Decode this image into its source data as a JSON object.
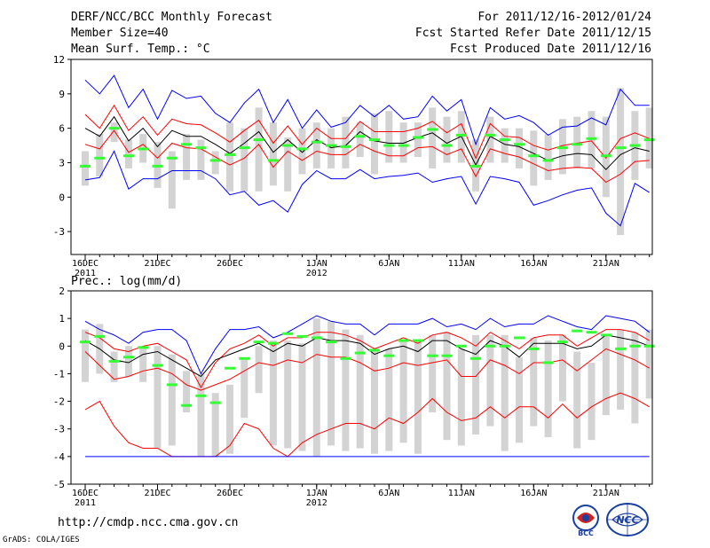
{
  "header": {
    "title": "DERF/NCC/BCC Monthly Forecast",
    "member_size": "Member Size=40",
    "variable": "Mean Surf. Temp.: °C",
    "period": "For 2011/12/16-2012/01/24",
    "started": "Fcst Started Refer Date 2011/12/15",
    "produced": "Fcst Produced Date 2011/12/16"
  },
  "footer": {
    "url": "http://cmdp.ncc.cma.gov.cn",
    "credit": "GrADS: COLA/IGES",
    "logo_left": "BCC",
    "logo_right": "NCC"
  },
  "colors": {
    "envelope": "#0000ff",
    "spread": "#ff0000",
    "mean": "#000000",
    "box": "#d3d3d3",
    "marker": "#33ff33"
  },
  "chart_data": [
    {
      "type": "line",
      "name": "temperature",
      "title": "",
      "ylabel": "Mean Surf. Temp.: °C",
      "ylim": [
        -5,
        12
      ],
      "yticks": [
        "12",
        "9",
        "6",
        "3",
        "0",
        "-3"
      ],
      "ytick_values": [
        12,
        9,
        6,
        3,
        0,
        -3
      ],
      "x_tick_labels": [
        {
          "day": 0,
          "label": "16DEC",
          "sub": "2011"
        },
        {
          "day": 5,
          "label": "21DEC",
          "sub": ""
        },
        {
          "day": 10,
          "label": "26DEC",
          "sub": ""
        },
        {
          "day": 16,
          "label": "1JAN",
          "sub": "2012"
        },
        {
          "day": 21,
          "label": "6JAN",
          "sub": ""
        },
        {
          "day": 26,
          "label": "11JAN",
          "sub": ""
        },
        {
          "day": 31,
          "label": "16JAN",
          "sub": ""
        },
        {
          "day": 36,
          "label": "21JAN",
          "sub": ""
        }
      ],
      "series": [
        {
          "name": "max",
          "color": "#0000ff",
          "values": [
            10.2,
            9.0,
            10.6,
            7.8,
            9.4,
            6.8,
            9.3,
            8.6,
            8.8,
            7.3,
            6.5,
            8.2,
            9.4,
            6.5,
            8.5,
            6.0,
            7.6,
            6.1,
            6.5,
            8.0,
            7.0,
            8.0,
            6.8,
            7.0,
            8.8,
            7.5,
            8.5,
            4.6,
            7.8,
            6.8,
            7.1,
            6.5,
            5.4,
            6.1,
            6.2,
            6.9,
            6.3,
            9.4,
            8.0,
            8.0
          ]
        },
        {
          "name": "upper",
          "color": "#ff0000",
          "values": [
            7.2,
            6.0,
            8.0,
            5.8,
            7.0,
            5.4,
            6.8,
            6.4,
            6.3,
            5.6,
            4.8,
            5.8,
            6.7,
            4.7,
            6.2,
            4.6,
            6.0,
            5.1,
            5.1,
            6.6,
            5.7,
            5.7,
            5.7,
            6.0,
            6.6,
            5.6,
            6.4,
            3.4,
            6.4,
            5.3,
            5.2,
            4.5,
            4.1,
            4.5,
            4.7,
            4.9,
            3.4,
            5.1,
            5.6,
            5.1
          ]
        },
        {
          "name": "mean",
          "color": "#000000",
          "values": [
            6.0,
            5.3,
            7.0,
            4.9,
            6.0,
            4.4,
            5.8,
            5.3,
            5.3,
            4.6,
            3.8,
            4.7,
            5.7,
            3.9,
            5.0,
            3.9,
            5.0,
            4.3,
            4.5,
            5.7,
            4.9,
            4.7,
            4.7,
            5.2,
            5.6,
            4.7,
            5.3,
            2.8,
            5.3,
            4.6,
            4.4,
            3.8,
            3.2,
            3.6,
            3.8,
            3.7,
            2.4,
            3.7,
            4.3,
            4.0
          ]
        },
        {
          "name": "lower",
          "color": "#ff0000",
          "values": [
            4.6,
            4.2,
            5.8,
            3.9,
            4.6,
            3.4,
            4.7,
            4.3,
            4.2,
            3.5,
            2.8,
            3.4,
            4.6,
            2.6,
            4.0,
            3.2,
            4.0,
            3.7,
            3.7,
            4.6,
            4.0,
            3.6,
            3.6,
            4.3,
            4.4,
            3.7,
            4.2,
            1.8,
            4.2,
            3.8,
            3.5,
            2.9,
            2.3,
            2.5,
            2.6,
            2.5,
            1.3,
            2.0,
            3.1,
            3.2
          ]
        },
        {
          "name": "min",
          "color": "#0000ff",
          "values": [
            1.5,
            1.7,
            4.0,
            0.7,
            1.6,
            1.6,
            2.3,
            2.3,
            2.3,
            1.6,
            0.2,
            0.5,
            -0.7,
            -0.3,
            -1.3,
            1.1,
            2.3,
            1.6,
            1.6,
            2.4,
            1.6,
            1.8,
            1.9,
            2.1,
            1.3,
            1.6,
            1.8,
            -0.6,
            1.8,
            1.6,
            1.3,
            -0.7,
            -0.3,
            0.2,
            0.6,
            0.8,
            -1.4,
            -2.5,
            1.2,
            0.4
          ]
        }
      ],
      "boxes": [
        {
          "low": 1.0,
          "high": 4.0
        },
        {
          "low": 1.8,
          "high": 5.5
        },
        {
          "low": 4.8,
          "high": 6.5
        },
        {
          "low": 2.5,
          "high": 5.0
        },
        {
          "low": 3.0,
          "high": 5.5
        },
        {
          "low": 0.8,
          "high": 4.8
        },
        {
          "low": -1.0,
          "high": 4.0
        },
        {
          "low": 1.5,
          "high": 5.5
        },
        {
          "low": 1.5,
          "high": 5.0
        },
        {
          "low": 2.0,
          "high": 4.0
        },
        {
          "low": 0.5,
          "high": 6.5
        },
        {
          "low": 0.5,
          "high": 6.0
        },
        {
          "low": 0.5,
          "high": 7.8
        },
        {
          "low": 1.0,
          "high": 6.5
        },
        {
          "low": 0.5,
          "high": 5.2
        },
        {
          "low": 2.0,
          "high": 6.0
        },
        {
          "low": 2.5,
          "high": 6.5
        },
        {
          "low": 2.5,
          "high": 6.0
        },
        {
          "low": 2.5,
          "high": 7.0
        },
        {
          "low": 3.5,
          "high": 6.5
        },
        {
          "low": 2.0,
          "high": 7.3
        },
        {
          "low": 3.0,
          "high": 7.5
        },
        {
          "low": 3.0,
          "high": 6.5
        },
        {
          "low": 3.5,
          "high": 6.5
        },
        {
          "low": 2.5,
          "high": 7.8
        },
        {
          "low": 3.0,
          "high": 7.0
        },
        {
          "low": 3.0,
          "high": 7.5
        },
        {
          "low": 0.5,
          "high": 5.0
        },
        {
          "low": 3.0,
          "high": 7.0
        },
        {
          "low": 3.0,
          "high": 6.0
        },
        {
          "low": 2.5,
          "high": 6.0
        },
        {
          "low": 1.0,
          "high": 5.8
        },
        {
          "low": 1.5,
          "high": 5.5
        },
        {
          "low": 2.0,
          "high": 6.8
        },
        {
          "low": 2.5,
          "high": 7.0
        },
        {
          "low": 2.5,
          "high": 7.5
        },
        {
          "low": 0.0,
          "high": 7.0
        },
        {
          "low": -3.3,
          "high": 9.5
        },
        {
          "low": 1.5,
          "high": 7.5
        },
        {
          "low": 2.5,
          "high": 7.8
        }
      ],
      "markers": [
        2.7,
        3.4,
        6.0,
        3.6,
        4.2,
        2.7,
        3.4,
        4.6,
        4.3,
        3.2,
        3.7,
        4.3,
        5.0,
        3.2,
        4.5,
        4.2,
        4.8,
        4.5,
        4.4,
        5.3,
        5.0,
        4.5,
        4.5,
        5.2,
        5.9,
        4.5,
        5.4,
        2.7,
        5.4,
        5.0,
        4.6,
        3.6,
        3.2,
        4.3,
        4.6,
        5.1,
        3.6,
        4.3,
        4.5,
        5.0
      ]
    },
    {
      "type": "line",
      "name": "precipitation",
      "title": "",
      "ylabel": "Prec.: log(mm/d)",
      "ylim": [
        -5,
        2
      ],
      "yticks": [
        "2",
        "1",
        "0",
        "-1",
        "-2",
        "-3",
        "-4",
        "-5"
      ],
      "ytick_values": [
        2,
        1,
        0,
        -1,
        -2,
        -3,
        -4,
        -5
      ],
      "x_tick_labels": [
        {
          "day": 0,
          "label": "16DEC",
          "sub": "2011"
        },
        {
          "day": 5,
          "label": "21DEC",
          "sub": ""
        },
        {
          "day": 10,
          "label": "26DEC",
          "sub": ""
        },
        {
          "day": 16,
          "label": "1JAN",
          "sub": "2012"
        },
        {
          "day": 21,
          "label": "6JAN",
          "sub": ""
        },
        {
          "day": 26,
          "label": "11JAN",
          "sub": ""
        },
        {
          "day": 31,
          "label": "16JAN",
          "sub": ""
        },
        {
          "day": 36,
          "label": "21JAN",
          "sub": ""
        }
      ],
      "series": [
        {
          "name": "max",
          "color": "#0000ff",
          "values": [
            0.9,
            0.6,
            0.4,
            0.1,
            0.5,
            0.6,
            0.6,
            0.2,
            -1.0,
            -0.1,
            0.6,
            0.6,
            0.7,
            0.3,
            0.5,
            0.8,
            1.1,
            0.9,
            0.8,
            0.8,
            0.4,
            0.8,
            0.8,
            0.8,
            1.0,
            0.7,
            0.8,
            0.6,
            1.0,
            0.7,
            0.8,
            0.8,
            1.1,
            0.9,
            0.7,
            0.6,
            1.1,
            1.0,
            0.9,
            0.5
          ]
        },
        {
          "name": "upper",
          "color": "#ff0000",
          "values": [
            0.5,
            0.3,
            -0.1,
            -0.2,
            0.0,
            0.1,
            -0.2,
            -0.5,
            -1.5,
            -0.6,
            -0.1,
            0.1,
            0.4,
            0.0,
            0.3,
            0.3,
            0.5,
            0.5,
            0.4,
            0.2,
            -0.1,
            0.1,
            0.3,
            0.1,
            0.4,
            0.5,
            0.3,
            0.0,
            0.5,
            0.2,
            -0.1,
            0.3,
            0.4,
            0.4,
            0.0,
            0.3,
            0.6,
            0.6,
            0.5,
            0.2
          ]
        },
        {
          "name": "mean",
          "color": "#000000",
          "values": [
            0.2,
            -0.1,
            -0.5,
            -0.6,
            -0.3,
            -0.2,
            -0.5,
            -0.8,
            -1.1,
            -0.5,
            -0.3,
            -0.1,
            0.1,
            -0.2,
            0.1,
            0.0,
            0.3,
            0.2,
            0.2,
            0.1,
            -0.3,
            -0.1,
            0.0,
            -0.2,
            0.2,
            0.2,
            -0.1,
            -0.3,
            0.2,
            0.0,
            -0.4,
            0.1,
            0.1,
            0.1,
            -0.1,
            0.0,
            0.4,
            0.3,
            0.2,
            0.0
          ]
        },
        {
          "name": "lower",
          "color": "#ff0000",
          "values": [
            -0.2,
            -0.7,
            -1.2,
            -1.1,
            -0.9,
            -0.8,
            -1.0,
            -1.4,
            -1.6,
            -1.4,
            -1.2,
            -0.9,
            -0.6,
            -0.7,
            -0.5,
            -0.6,
            -0.3,
            -0.4,
            -0.4,
            -0.6,
            -0.9,
            -0.8,
            -0.6,
            -0.7,
            -0.6,
            -0.5,
            -1.1,
            -1.1,
            -0.5,
            -0.7,
            -1.0,
            -0.6,
            -0.6,
            -0.5,
            -0.9,
            -0.5,
            -0.1,
            -0.3,
            -0.5,
            -0.8
          ]
        },
        {
          "name": "lowest",
          "color": "#ff0000",
          "values": [
            -2.3,
            -2.0,
            -2.9,
            -3.5,
            -3.7,
            -3.7,
            -4.0,
            -4.0,
            -4.0,
            -4.0,
            -3.6,
            -2.8,
            -3.0,
            -3.7,
            -4.0,
            -3.5,
            -3.2,
            -3.0,
            -2.8,
            -2.8,
            -3.0,
            -2.6,
            -2.8,
            -2.4,
            -1.9,
            -2.4,
            -2.7,
            -2.6,
            -2.2,
            -2.6,
            -2.2,
            -2.2,
            -2.6,
            -2.1,
            -2.6,
            -2.2,
            -1.9,
            -1.7,
            -1.9,
            -2.2
          ]
        },
        {
          "name": "min",
          "color": "#0000ff",
          "values": [
            -4,
            -4,
            -4,
            -4,
            -4,
            -4,
            -4,
            -4,
            -4,
            -4,
            -4,
            -4,
            -4,
            -4,
            -4,
            -4,
            -4,
            -4,
            -4,
            -4,
            -4,
            -4,
            -4,
            -4,
            -4,
            -4,
            -4,
            -4,
            -4,
            -4,
            -4,
            -4,
            -4,
            -4,
            -4,
            -4,
            -4,
            -4,
            -4,
            -4
          ]
        }
      ],
      "boxes": [
        {
          "low": -1.3,
          "high": 0.6
        },
        {
          "low": -1.0,
          "high": 0.8
        },
        {
          "low": -1.3,
          "high": -0.2
        },
        {
          "low": -1.1,
          "high": 0.0
        },
        {
          "low": -1.3,
          "high": -0.1
        },
        {
          "low": -3.7,
          "high": 0.0
        },
        {
          "low": -3.6,
          "high": -0.3
        },
        {
          "low": -2.4,
          "high": -0.9
        },
        {
          "low": -4.0,
          "high": -1.0
        },
        {
          "low": -4.0,
          "high": -1.7
        },
        {
          "low": -3.9,
          "high": -1.4
        },
        {
          "low": -2.6,
          "high": -0.5
        },
        {
          "low": -1.7,
          "high": 0.0
        },
        {
          "low": -3.6,
          "high": 0.2
        },
        {
          "low": -3.7,
          "high": 0.2
        },
        {
          "low": -3.8,
          "high": 0.1
        },
        {
          "low": -4.0,
          "high": 1.0
        },
        {
          "low": -3.6,
          "high": 0.9
        },
        {
          "low": -3.8,
          "high": 0.6
        },
        {
          "low": -3.7,
          "high": 0.4
        },
        {
          "low": -3.9,
          "high": -0.2
        },
        {
          "low": -3.8,
          "high": -0.1
        },
        {
          "low": -3.5,
          "high": 0.2
        },
        {
          "low": -3.9,
          "high": 0.2
        },
        {
          "low": -2.4,
          "high": 0.4
        },
        {
          "low": -3.4,
          "high": 0.5
        },
        {
          "low": -3.6,
          "high": -0.1
        },
        {
          "low": -3.2,
          "high": 0.4
        },
        {
          "low": -2.9,
          "high": 0.4
        },
        {
          "low": -3.8,
          "high": 0.4
        },
        {
          "low": -3.5,
          "high": -0.4
        },
        {
          "low": -2.9,
          "high": 0.3
        },
        {
          "low": -3.3,
          "high": 0.2
        },
        {
          "low": -2.0,
          "high": 0.4
        },
        {
          "low": -3.7,
          "high": -0.2
        },
        {
          "low": -3.4,
          "high": -0.6
        },
        {
          "low": -2.5,
          "high": 0.4
        },
        {
          "low": -2.3,
          "high": 0.6
        },
        {
          "low": -2.8,
          "high": 0.5
        },
        {
          "low": -1.9,
          "high": 0.6
        }
      ],
      "markers": [
        0.15,
        0.35,
        -0.55,
        -0.4,
        -0.05,
        -0.7,
        -1.4,
        -2.15,
        -1.8,
        -2.05,
        -0.8,
        -0.45,
        0.15,
        0.1,
        0.45,
        0.35,
        0.3,
        0.15,
        -0.45,
        -0.25,
        -0.15,
        -0.35,
        0.2,
        0.2,
        -0.35,
        -0.35,
        0.0,
        -0.45,
        0.0,
        0.0,
        0.3,
        -0.1,
        -0.6,
        0.15,
        0.55,
        0.5,
        0.4,
        -0.1,
        0.0,
        0.0
      ]
    }
  ]
}
